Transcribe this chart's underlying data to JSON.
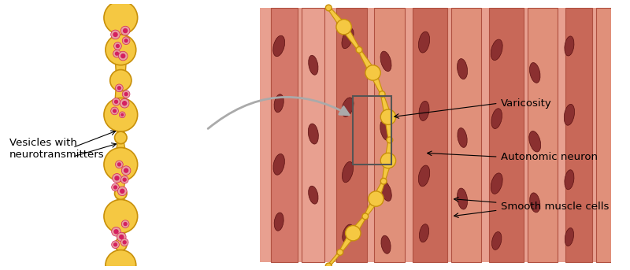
{
  "bg_color": "#ffffff",
  "muscle_bg": "#e8a090",
  "muscle_stripe": "#c97060",
  "muscle_dark": "#8B3030",
  "neuron_fill": "#f5c842",
  "neuron_stroke": "#c8900a",
  "vesicle_outer": "#e8a0a0",
  "vesicle_inner": "#d42060",
  "arrow_color": "#aaaaaa",
  "label_color": "#000000",
  "box_color": "#cccccc",
  "labels": {
    "vesicles": "Vesicles with\nneurotransmitters",
    "varicosity": "Varicosity",
    "autonomic": "Autonomic neuron",
    "smooth": "Smooth muscle cells"
  },
  "figsize": [
    8.0,
    3.43
  ],
  "dpi": 100
}
